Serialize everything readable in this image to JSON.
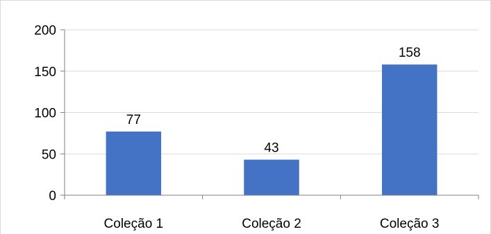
{
  "chart_data": {
    "type": "bar",
    "title": "",
    "xlabel": "",
    "ylabel": "",
    "categories": [
      "Coleção 1",
      "Coleção 2",
      "Coleção 3"
    ],
    "values": [
      77,
      43,
      158
    ],
    "data_labels": [
      "77",
      "43",
      "158"
    ],
    "ylim": [
      0,
      200
    ],
    "yticks": [
      0,
      50,
      100,
      150,
      200
    ],
    "grid": true,
    "legend": "none",
    "bar_color": "#4472c4",
    "gridline_color": "#d9d9d9",
    "axis_color": "#7f7f7f"
  }
}
